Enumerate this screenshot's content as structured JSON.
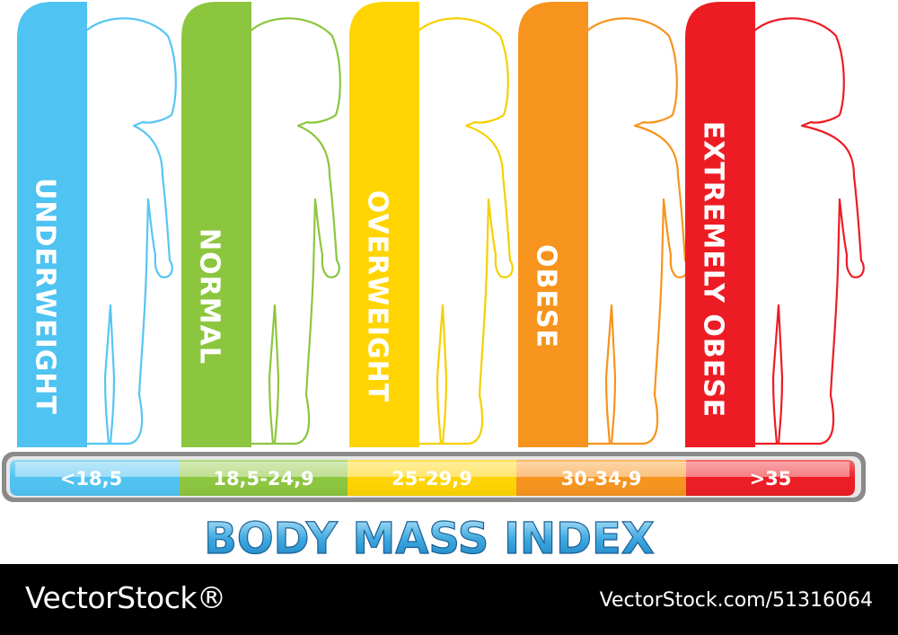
{
  "title": "BODY MASS INDEX",
  "categories": [
    {
      "label": "UNDERWEIGHT",
      "range": "<18,5",
      "color": "#4fc3f2",
      "light": "#a8e0f8",
      "outline": "#56c6f3"
    },
    {
      "label": "NORMAL",
      "range": "18,5-24,9",
      "color": "#8cc63e",
      "light": "#c7e39f",
      "outline": "#8cc63e"
    },
    {
      "label": "OVERWEIGHT",
      "range": "25-29,9",
      "color": "#ffd400",
      "light": "#ffe97f",
      "outline": "#f5d000"
    },
    {
      "label": "OBESE",
      "range": "30-34,9",
      "color": "#f7941d",
      "light": "#fbc98e",
      "outline": "#f7941d"
    },
    {
      "label": "EXTREMELY OBESE",
      "range": ">35",
      "color": "#ed1c24",
      "light": "#f68d91",
      "outline": "#ed1c24"
    }
  ],
  "footer": {
    "brand": "VectorStock®",
    "image_id": "VectorStock.com/51316064"
  }
}
